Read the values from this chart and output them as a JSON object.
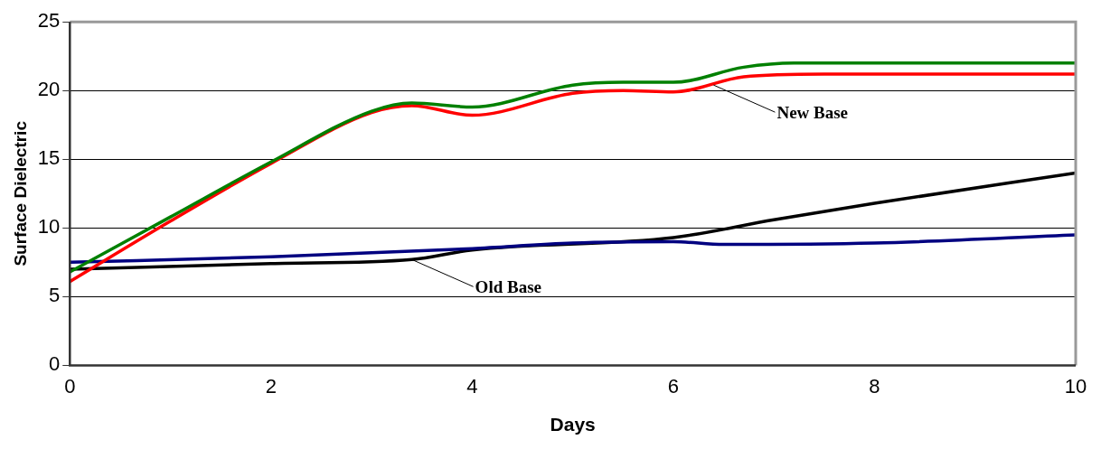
{
  "chart_data": {
    "type": "line",
    "xlabel": "Days",
    "ylabel": "Surface Dielectric",
    "xlim": [
      0,
      10
    ],
    "xticks": [
      0,
      2,
      4,
      6,
      8,
      10
    ],
    "ylim": [
      0,
      25
    ],
    "yticks": [
      0,
      5,
      10,
      15,
      20,
      25
    ],
    "grid": "y",
    "legend": false,
    "marker": "none",
    "line_style": "solid",
    "series": [
      {
        "color": "#008000",
        "x": [
          0,
          1,
          2,
          3,
          3.4,
          4,
          5,
          5.5,
          6,
          6.7,
          7.2,
          8,
          10
        ],
        "values": [
          6.8,
          10.8,
          14.8,
          18.5,
          19.1,
          18.8,
          20.4,
          20.6,
          20.6,
          21.7,
          22.0,
          22.0,
          22.0
        ]
      },
      {
        "color": "#ff0000",
        "x": [
          0,
          1,
          2,
          3,
          3.4,
          4,
          5,
          5.5,
          6,
          6.7,
          7.5,
          10
        ],
        "values": [
          6.1,
          10.5,
          14.7,
          18.4,
          18.9,
          18.2,
          19.8,
          20.0,
          19.9,
          21.0,
          21.2,
          21.2
        ]
      },
      {
        "color": "#000080",
        "x": [
          0,
          2,
          4,
          5,
          6,
          6.5,
          8,
          10
        ],
        "values": [
          7.5,
          7.9,
          8.5,
          8.9,
          9.0,
          8.8,
          8.9,
          9.5
        ]
      },
      {
        "color": "#000000",
        "x": [
          0,
          2,
          3.4,
          4,
          6,
          7,
          8,
          10
        ],
        "values": [
          7.0,
          7.4,
          7.7,
          8.4,
          9.3,
          10.6,
          11.8,
          14.0
        ]
      }
    ],
    "annotations": [
      {
        "text": "New Base",
        "x": 6.4,
        "y": 20.4
      },
      {
        "text": "Old Base",
        "x": 3.4,
        "y": 7.7
      }
    ]
  }
}
